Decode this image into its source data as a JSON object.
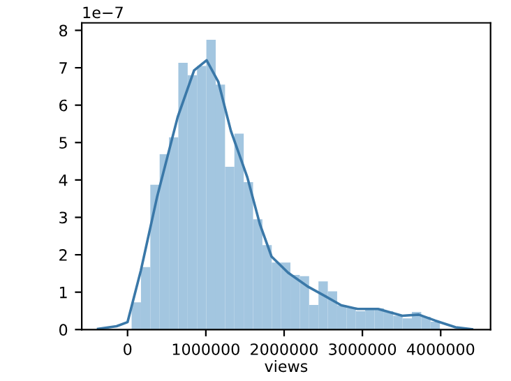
{
  "chart_data": {
    "type": "histogram",
    "xlabel": "views",
    "annotations": [
      "1e−7"
    ],
    "bins": [
      52000,
      171333,
      290667,
      410000,
      529333,
      648667,
      768000,
      887333,
      1006667,
      1126000,
      1245333,
      1364667,
      1484000,
      1603333,
      1722667,
      1842000,
      1961333,
      2080667,
      2200000,
      2319333,
      2438667,
      2558000,
      2677333,
      2796667,
      2916000,
      3035333,
      3154667,
      3274000,
      3393333,
      3512667,
      3632000,
      3751333,
      3870667,
      3990000
    ],
    "values": [
      0.73,
      1.67,
      3.87,
      4.69,
      5.14,
      7.13,
      6.8,
      7.05,
      7.75,
      6.55,
      4.35,
      5.24,
      3.94,
      2.95,
      2.26,
      1.79,
      1.79,
      1.46,
      1.43,
      0.66,
      1.29,
      1.02,
      0.65,
      0.58,
      0.49,
      0.57,
      0.57,
      0.49,
      0.37,
      0.3,
      0.47,
      0.34,
      0.21
    ],
    "color": "#a3c6e0",
    "series": [
      {
        "type": "line",
        "color": "#3a78a8",
        "x": [
          -376000,
          -140000,
          0,
          170000,
          380000,
          640000,
          850000,
          1010000,
          1160000,
          1320000,
          1530000,
          1690000,
          1840000,
          2050000,
          2310000,
          2520000,
          2730000,
          2940000,
          3200000,
          3510000,
          3720000,
          3930000,
          4190000,
          4400000
        ],
        "values": [
          0.02,
          0.09,
          0.2,
          1.58,
          3.57,
          5.68,
          6.93,
          7.2,
          6.62,
          5.31,
          4.07,
          2.82,
          1.95,
          1.52,
          1.14,
          0.9,
          0.65,
          0.55,
          0.55,
          0.37,
          0.4,
          0.24,
          0.06,
          0.01
        ]
      }
    ],
    "xlim": [
      -585000,
      4637000
    ],
    "ylim": [
      0,
      8.2
    ],
    "xticks": [
      0,
      1000000,
      2000000,
      3000000,
      4000000
    ],
    "yticks": [
      0,
      1,
      2,
      3,
      4,
      5,
      6,
      7,
      8
    ],
    "grid": false,
    "legend": false
  }
}
